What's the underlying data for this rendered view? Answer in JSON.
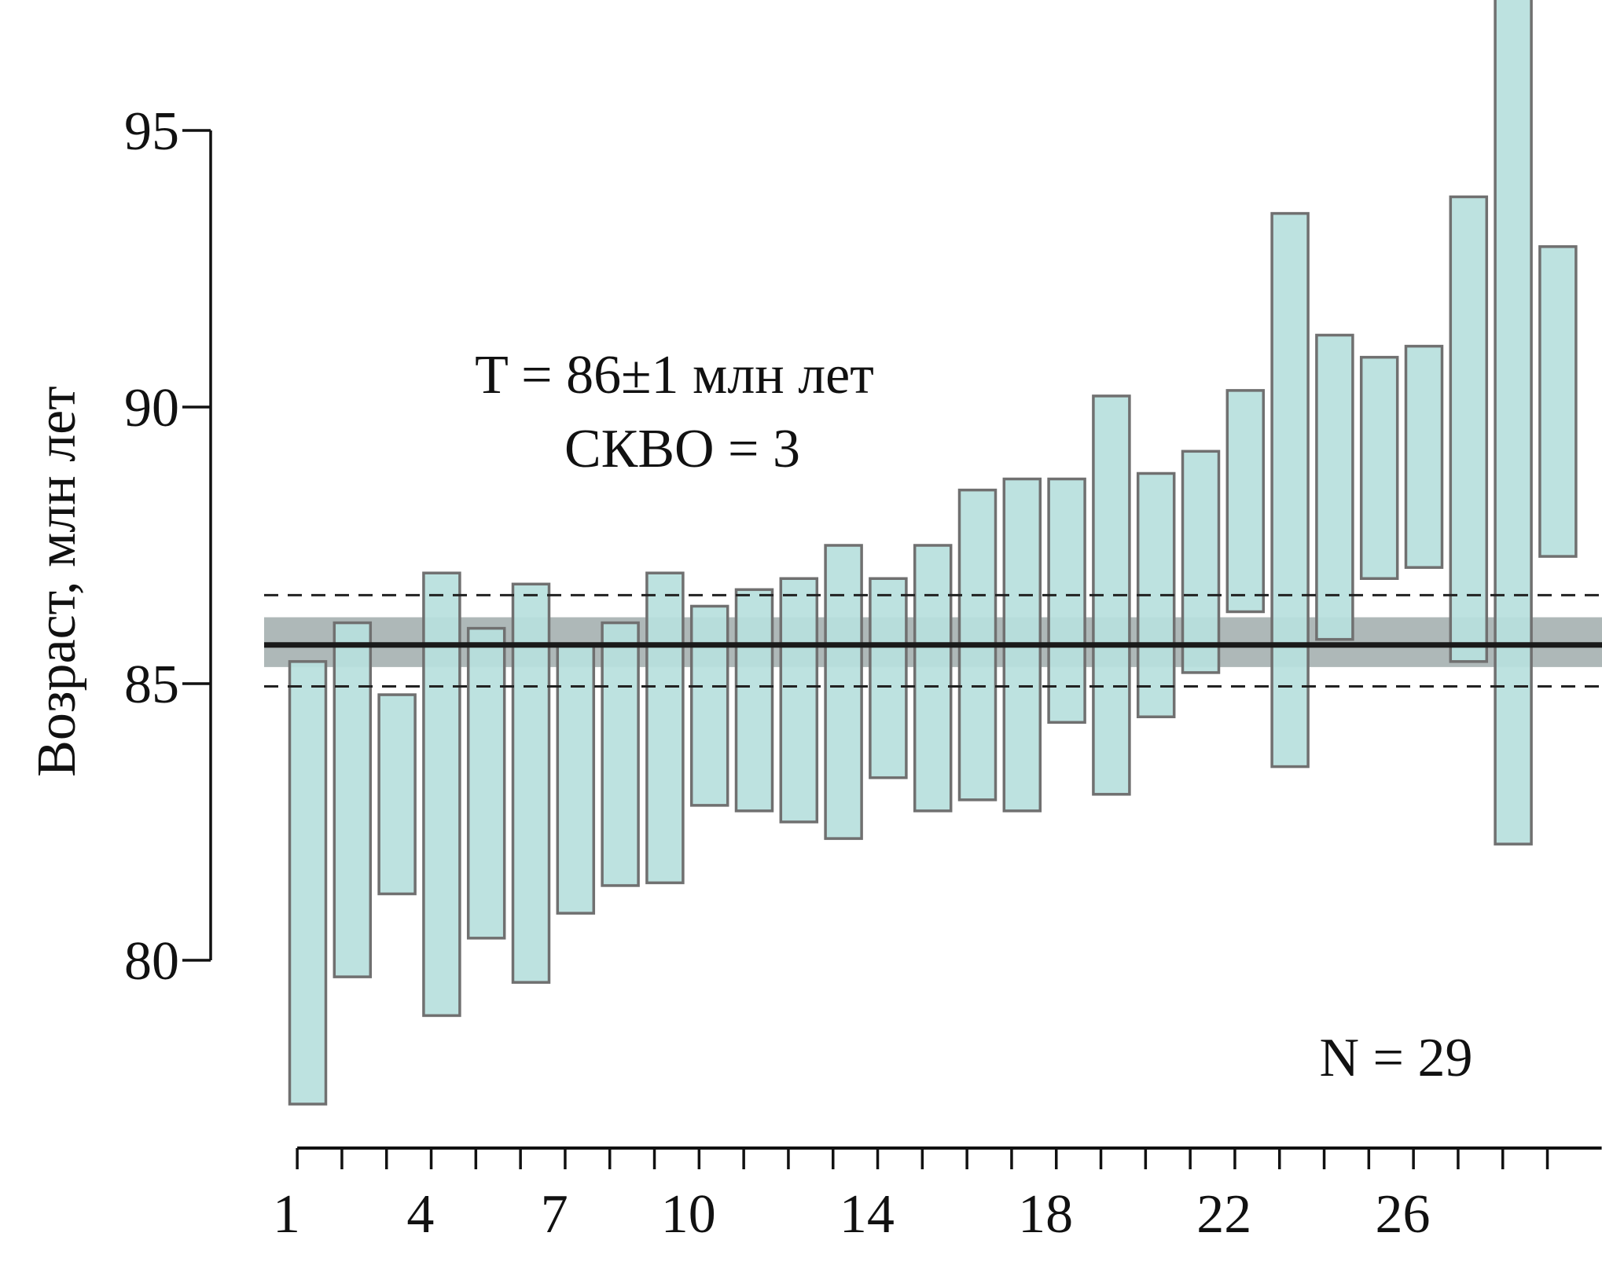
{
  "chart_data": {
    "type": "bar",
    "subtype": "error-bar boxes (weighted mean plot)",
    "ylabel": "Возраст, млн лет",
    "xlabel": "",
    "x_ticks": [
      "1",
      "4",
      "7",
      "10",
      "14",
      "18",
      "22",
      "26"
    ],
    "y_ticks": [
      "80",
      "85",
      "90",
      "95"
    ],
    "ylim": [
      76.0,
      97.5
    ],
    "grid": false,
    "legend": "none",
    "annotations": {
      "result_line1": "T = 86±1 млн лет",
      "result_line2": "СКВО = 3",
      "n_label": "N = 29"
    },
    "mean": 85.7,
    "mean_band": [
      85.3,
      86.2
    ],
    "dashed_limits": [
      84.95,
      86.6
    ],
    "bars": [
      {
        "index": 1,
        "low": 77.4,
        "high": 85.4
      },
      {
        "index": 2,
        "low": 79.7,
        "high": 86.1
      },
      {
        "index": 3,
        "low": 81.2,
        "high": 84.8
      },
      {
        "index": 4,
        "low": 79.0,
        "high": 87.0
      },
      {
        "index": 5,
        "low": 80.4,
        "high": 86.0
      },
      {
        "index": 6,
        "low": 79.6,
        "high": 86.8
      },
      {
        "index": 7,
        "low": 80.85,
        "high": 85.7
      },
      {
        "index": 8,
        "low": 81.35,
        "high": 86.1
      },
      {
        "index": 9,
        "low": 81.4,
        "high": 87.0
      },
      {
        "index": 10,
        "low": 82.8,
        "high": 86.4
      },
      {
        "index": 11,
        "low": 82.7,
        "high": 86.7
      },
      {
        "index": 12,
        "low": 82.5,
        "high": 86.9
      },
      {
        "index": 13,
        "low": 82.2,
        "high": 87.5
      },
      {
        "index": 14,
        "low": 83.3,
        "high": 86.9
      },
      {
        "index": 15,
        "low": 82.7,
        "high": 87.5
      },
      {
        "index": 16,
        "low": 82.9,
        "high": 88.5
      },
      {
        "index": 17,
        "low": 82.7,
        "high": 88.7
      },
      {
        "index": 18,
        "low": 84.3,
        "high": 88.7
      },
      {
        "index": 19,
        "low": 83.0,
        "high": 90.2
      },
      {
        "index": 20,
        "low": 84.4,
        "high": 88.8
      },
      {
        "index": 21,
        "low": 85.2,
        "high": 89.2
      },
      {
        "index": 22,
        "low": 86.3,
        "high": 90.3
      },
      {
        "index": 23,
        "low": 83.5,
        "high": 93.5
      },
      {
        "index": 24,
        "low": 85.8,
        "high": 91.3
      },
      {
        "index": 25,
        "low": 86.9,
        "high": 90.9
      },
      {
        "index": 26,
        "low": 87.1,
        "high": 91.1
      },
      {
        "index": 27,
        "low": 85.4,
        "high": 93.8
      },
      {
        "index": 28,
        "low": 82.1,
        "high": 97.4
      },
      {
        "index": 29,
        "low": 87.3,
        "high": 92.9
      }
    ],
    "colors": {
      "bar_fill": "#b8e0de",
      "bar_stroke": "#707070",
      "mean_line": "#1a1a1a",
      "mean_band": "#7d8d8c",
      "axis": "#111111"
    }
  }
}
